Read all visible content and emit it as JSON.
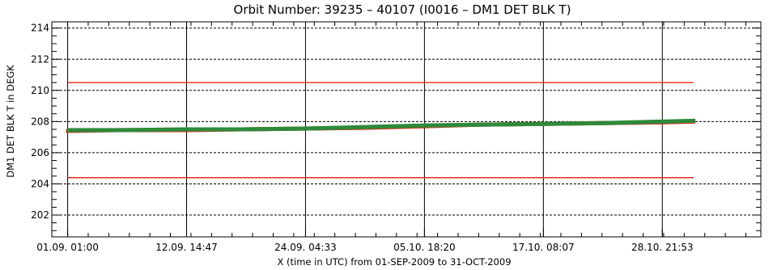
{
  "chart_data": {
    "type": "scatter",
    "title": "Orbit Number: 39235 – 40107 (I0016 – DM1 DET BLK T)",
    "ylabel": "DM1 DET BLK T in DEGK",
    "xlabel": "X (time in UTC) from 01-SEP-2009 to 31-OCT-2009",
    "x_start": "2009-08-30 12:00",
    "x_end": "2009-11-07 12:00",
    "ylim": [
      200.6,
      214.4
    ],
    "y_ticks": [
      "202",
      "204",
      "206",
      "208",
      "210",
      "212",
      "214"
    ],
    "x_ticks": [
      {
        "label": "01.09. 01:00",
        "t": "2009-09-01 01:00"
      },
      {
        "label": "12.09. 14:47",
        "t": "2009-09-12 14:47"
      },
      {
        "label": "24.09. 04:33",
        "t": "2009-09-24 04:33"
      },
      {
        "label": "05.10. 18:20",
        "t": "2009-10-05 18:20"
      },
      {
        "label": "17.10. 08:07",
        "t": "2009-10-17 08:07"
      },
      {
        "label": "28.10. 21:53",
        "t": "2009-10-28 21:53"
      }
    ],
    "limits": [
      {
        "name": "upper limit",
        "value": 210.5,
        "color": "#e8281e"
      },
      {
        "name": "lower limit",
        "value": 204.4,
        "color": "#e8281e"
      }
    ],
    "series": [
      {
        "color": "#dd2a1c",
        "x": [
          "2009-09-01 01:00",
          "2009-09-06 00:00",
          "2009-09-12 14:47",
          "2009-09-18 00:00",
          "2009-09-24 04:33",
          "2009-09-30 00:00",
          "2009-10-05 18:20",
          "2009-10-11 00:00",
          "2009-10-17 08:07",
          "2009-10-23 00:00",
          "2009-10-28 21:53",
          "2009-10-31 23:00"
        ],
        "y": [
          207.4,
          207.45,
          207.45,
          207.5,
          207.55,
          207.6,
          207.7,
          207.8,
          207.85,
          207.9,
          207.95,
          208.0
        ]
      },
      {
        "color": "#2e8a3a",
        "x": [
          "2009-09-01 01:00",
          "2009-09-06 00:00",
          "2009-09-12 14:47",
          "2009-09-18 00:00",
          "2009-09-24 04:33",
          "2009-09-30 00:00",
          "2009-10-05 18:20",
          "2009-10-11 00:00",
          "2009-10-17 08:07",
          "2009-10-23 00:00",
          "2009-10-28 21:53",
          "2009-10-31 23:00"
        ],
        "y": [
          207.45,
          207.45,
          207.5,
          207.5,
          207.55,
          207.65,
          207.75,
          207.8,
          207.85,
          207.9,
          208.0,
          208.05
        ]
      }
    ],
    "axis_color": "#000000",
    "grid": true
  }
}
